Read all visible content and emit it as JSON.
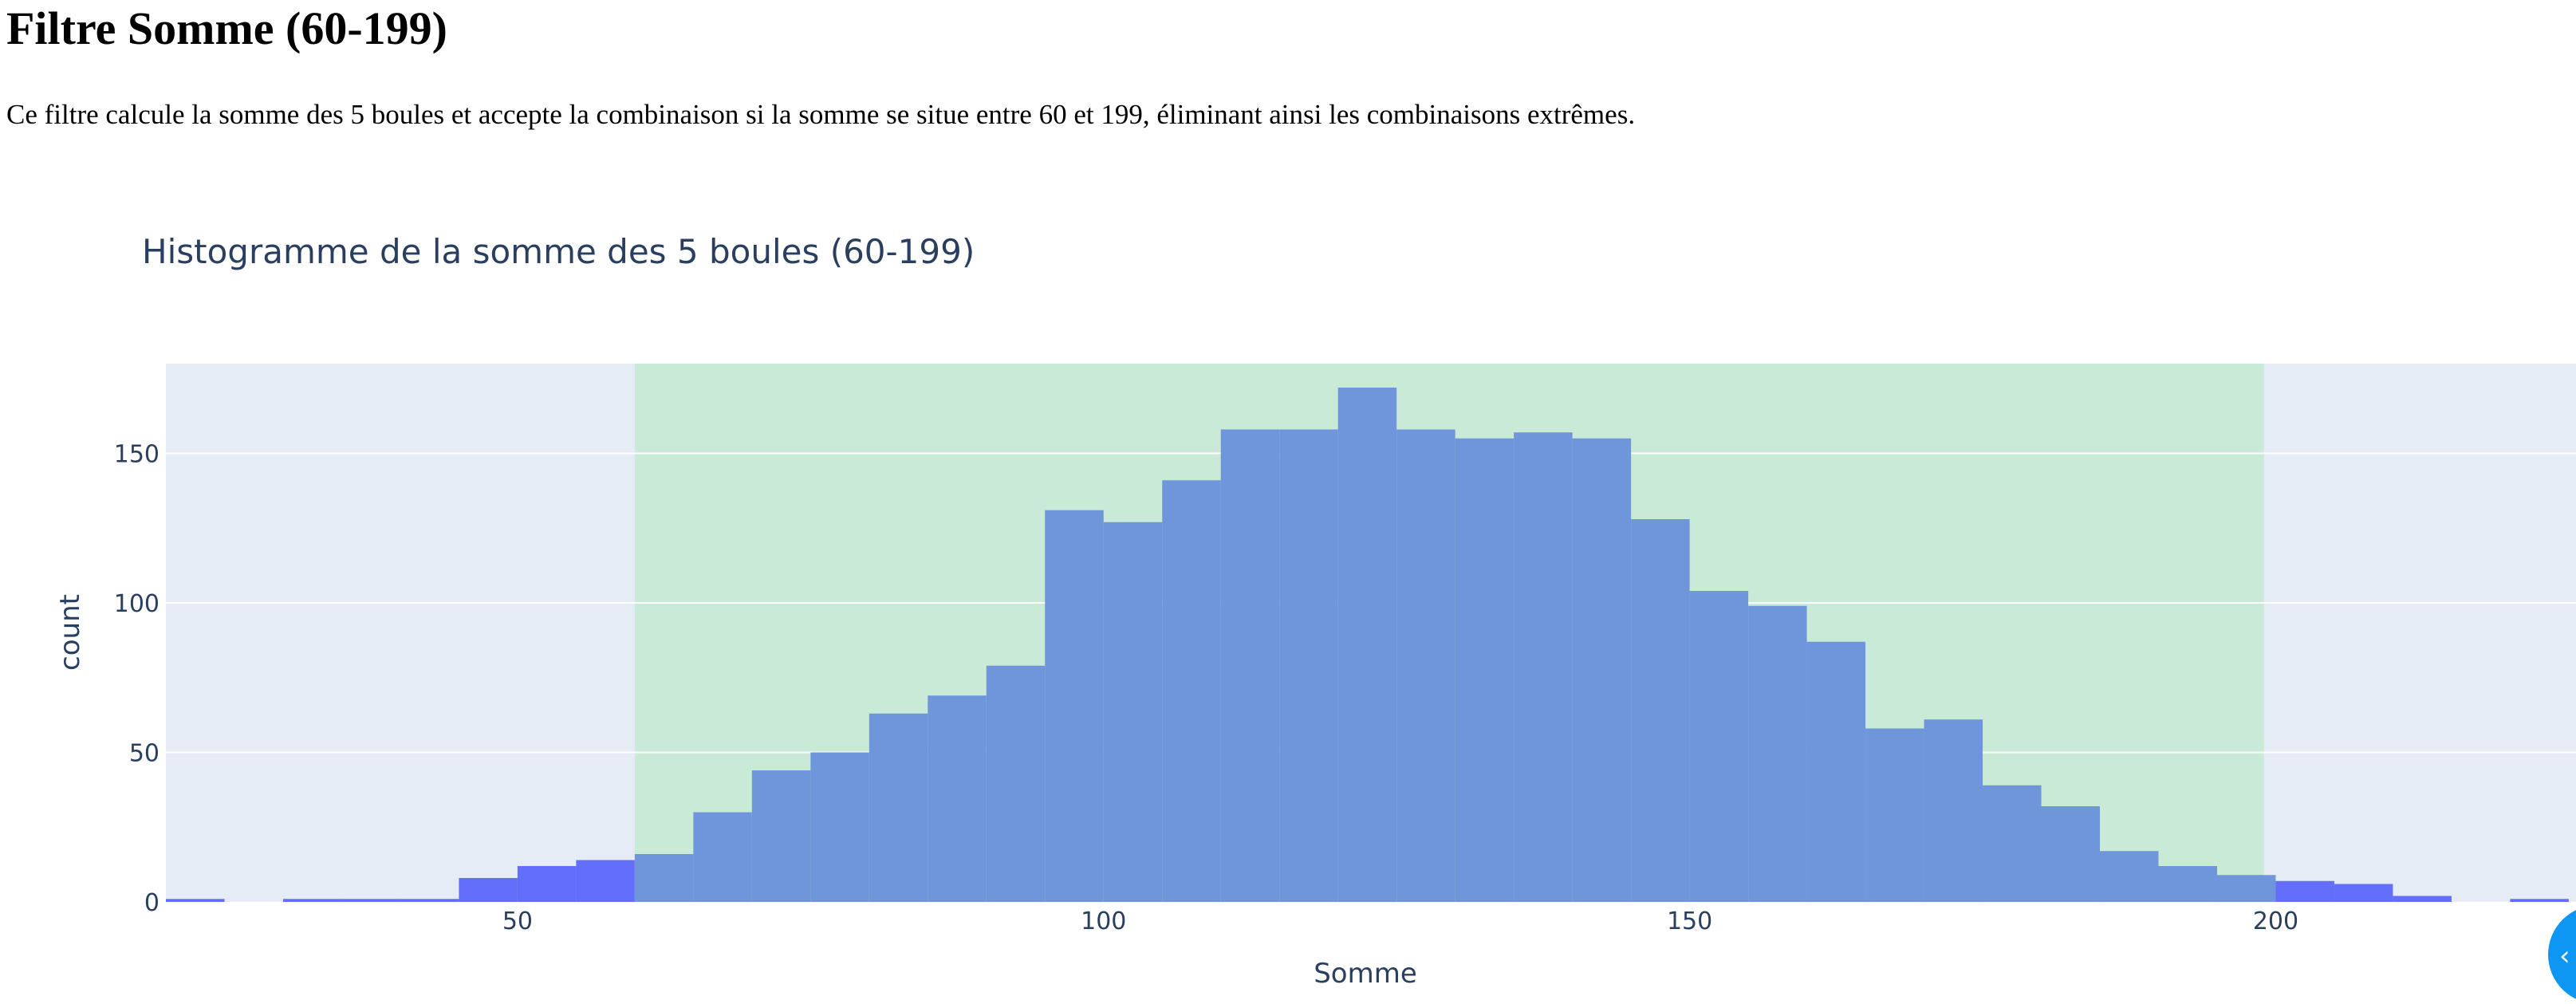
{
  "page": {
    "title": "Filtre Somme (60-199)",
    "description": "Ce filtre calcule la somme des 5 boules et accepte la combinaison si la somme se situe entre 60 et 199, éliminant ainsi les combinaisons extrêmes."
  },
  "chart_data": {
    "type": "bar",
    "title": "Histogramme de la somme des 5 boules (60-199)",
    "xlabel": "Somme",
    "ylabel": "count",
    "xlim": [
      20,
      225
    ],
    "ylim": [
      0,
      180
    ],
    "xticks": [
      50,
      100,
      150,
      200
    ],
    "yticks": [
      0,
      50,
      100,
      150
    ],
    "bin_width": 5,
    "highlight_range": [
      60,
      199
    ],
    "grid": true,
    "colors": {
      "inside": "#6f95da",
      "outside": "#636efa",
      "highlight": "#c9ead7",
      "plot_bg": "#e5ecf6"
    },
    "bins": [
      {
        "x": 20,
        "value": 1
      },
      {
        "x": 30,
        "value": 1
      },
      {
        "x": 35,
        "value": 1
      },
      {
        "x": 40,
        "value": 1
      },
      {
        "x": 45,
        "value": 8
      },
      {
        "x": 50,
        "value": 12
      },
      {
        "x": 55,
        "value": 14
      },
      {
        "x": 60,
        "value": 16
      },
      {
        "x": 65,
        "value": 30
      },
      {
        "x": 70,
        "value": 44
      },
      {
        "x": 75,
        "value": 50
      },
      {
        "x": 80,
        "value": 63
      },
      {
        "x": 85,
        "value": 69
      },
      {
        "x": 90,
        "value": 79
      },
      {
        "x": 95,
        "value": 131
      },
      {
        "x": 100,
        "value": 127
      },
      {
        "x": 105,
        "value": 141
      },
      {
        "x": 110,
        "value": 158
      },
      {
        "x": 115,
        "value": 158
      },
      {
        "x": 120,
        "value": 172
      },
      {
        "x": 125,
        "value": 158
      },
      {
        "x": 130,
        "value": 155
      },
      {
        "x": 135,
        "value": 157
      },
      {
        "x": 140,
        "value": 155
      },
      {
        "x": 145,
        "value": 128
      },
      {
        "x": 150,
        "value": 104
      },
      {
        "x": 155,
        "value": 99
      },
      {
        "x": 160,
        "value": 87
      },
      {
        "x": 165,
        "value": 58
      },
      {
        "x": 170,
        "value": 61
      },
      {
        "x": 175,
        "value": 39
      },
      {
        "x": 180,
        "value": 32
      },
      {
        "x": 185,
        "value": 17
      },
      {
        "x": 190,
        "value": 12
      },
      {
        "x": 195,
        "value": 9
      },
      {
        "x": 200,
        "value": 7
      },
      {
        "x": 205,
        "value": 6
      },
      {
        "x": 210,
        "value": 2
      },
      {
        "x": 220,
        "value": 1
      }
    ]
  }
}
